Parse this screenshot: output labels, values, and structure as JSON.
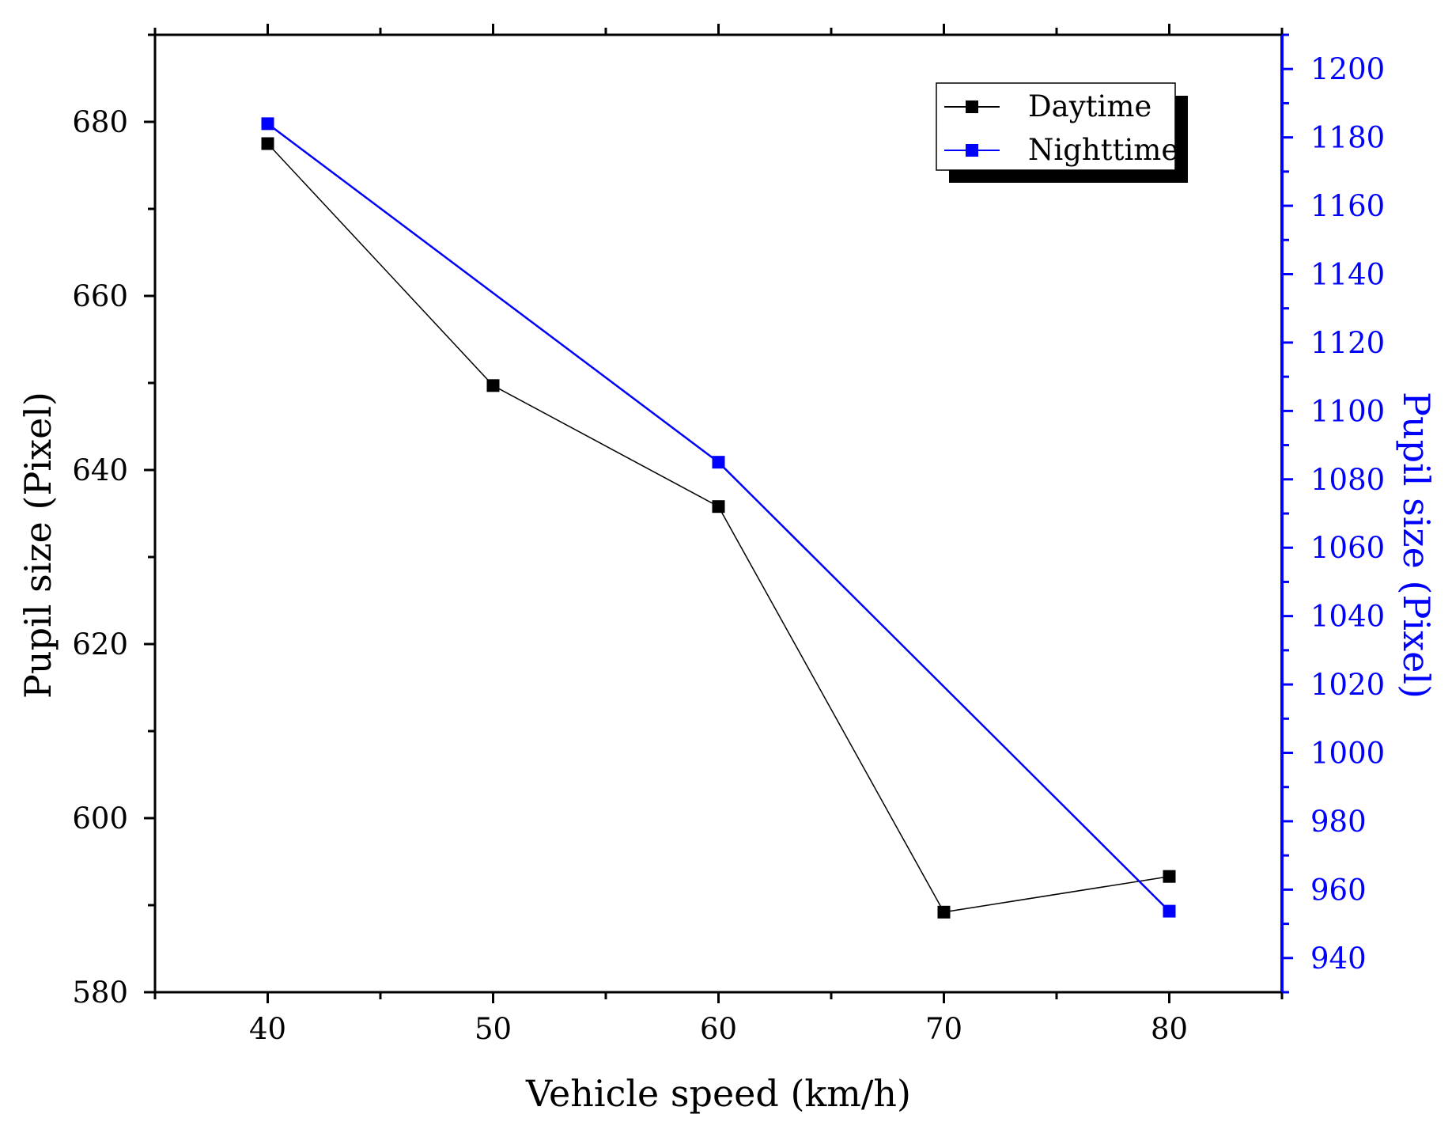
{
  "chart_data": {
    "type": "line",
    "title": "",
    "xlabel": "Vehicle speed (km/h)",
    "ylabel": "Pupil size (Pixel)",
    "y2label": "Pupil size (Pixel)",
    "xlim": [
      35,
      85
    ],
    "ylim": [
      580,
      690
    ],
    "y2lim": [
      930,
      1210
    ],
    "x_ticks": [
      40,
      50,
      60,
      70,
      80
    ],
    "y_ticks": [
      580,
      600,
      620,
      640,
      660,
      680
    ],
    "y2_ticks": [
      940,
      960,
      980,
      1000,
      1020,
      1040,
      1060,
      1080,
      1100,
      1120,
      1140,
      1160,
      1180,
      1200
    ],
    "grid": false,
    "legend_position": "top-right",
    "series": [
      {
        "name": "Daytime",
        "axis": "left",
        "color": "#000000",
        "x": [
          40,
          50,
          60,
          70,
          80
        ],
        "values": [
          677.5,
          649.7,
          635.8,
          589.2,
          593.3
        ]
      },
      {
        "name": "Nighttime",
        "axis": "right",
        "color": "#0000ff",
        "x": [
          40,
          60,
          80
        ],
        "values": [
          1184,
          1085,
          953.7
        ]
      }
    ],
    "colors": {
      "left_axis": "#000000",
      "right_axis": "#0000ff",
      "shadow": "#000000"
    }
  }
}
